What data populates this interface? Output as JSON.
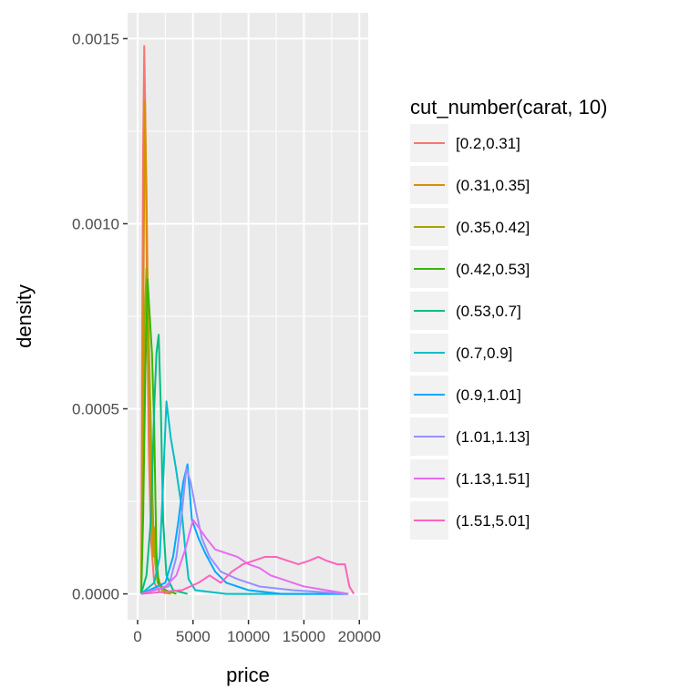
{
  "chart_data": {
    "type": "line",
    "title": "",
    "xlabel": "price",
    "ylabel": "density",
    "xlim": [
      -900,
      20800
    ],
    "ylim": [
      -7e-05,
      0.00157
    ],
    "x_ticks": [
      0,
      5000,
      10000,
      15000,
      20000
    ],
    "x_tick_labels": [
      "0",
      "5000",
      "10000",
      "15000",
      "20000"
    ],
    "y_ticks": [
      0,
      0.0005,
      0.001,
      0.0015
    ],
    "y_tick_labels": [
      "0.0000",
      "0.0005",
      "0.0010",
      "0.0015"
    ],
    "grid": true,
    "legend_position": "right",
    "legend_title": "cut_number(carat, 10)",
    "series": [
      {
        "name": "[0.2,0.31]",
        "color": "#F8766D",
        "points": [
          [
            326,
            0
          ],
          [
            400,
            0.0006
          ],
          [
            500,
            0.0012
          ],
          [
            600,
            0.00148
          ],
          [
            700,
            0.0013
          ],
          [
            850,
            0.0008
          ],
          [
            1000,
            0.0004
          ],
          [
            1200,
            0.00015
          ],
          [
            1500,
            3e-05
          ],
          [
            2000,
            5e-06
          ],
          [
            3000,
            0
          ]
        ]
      },
      {
        "name": "(0.31,0.35]",
        "color": "#D89000",
        "points": [
          [
            326,
            0
          ],
          [
            450,
            0.0004
          ],
          [
            550,
            0.0009
          ],
          [
            650,
            0.00133
          ],
          [
            800,
            0.0011
          ],
          [
            1000,
            0.0006
          ],
          [
            1200,
            0.00025
          ],
          [
            1400,
            0.0001
          ],
          [
            1600,
            0.00018
          ],
          [
            1800,
            5e-05
          ],
          [
            2200,
            1e-05
          ],
          [
            3000,
            0
          ]
        ]
      },
      {
        "name": "(0.35,0.42]",
        "color": "#A3A500",
        "points": [
          [
            326,
            0
          ],
          [
            500,
            0.0004
          ],
          [
            650,
            0.00075
          ],
          [
            800,
            0.00088
          ],
          [
            1000,
            0.0007
          ],
          [
            1200,
            0.00045
          ],
          [
            1400,
            0.0002
          ],
          [
            1600,
            8e-05
          ],
          [
            1800,
            3e-05
          ],
          [
            2500,
            0
          ]
        ]
      },
      {
        "name": "(0.42,0.53]",
        "color": "#39B600",
        "points": [
          [
            326,
            0
          ],
          [
            500,
            0.0002
          ],
          [
            700,
            0.0006
          ],
          [
            900,
            0.00085
          ],
          [
            1100,
            0.00075
          ],
          [
            1300,
            0.00065
          ],
          [
            1500,
            0.00045
          ],
          [
            1700,
            0.0001
          ],
          [
            1900,
            3e-05
          ],
          [
            2500,
            1e-05
          ],
          [
            3500,
            0
          ]
        ]
      },
      {
        "name": "(0.53,0.7]",
        "color": "#00BF7D",
        "points": [
          [
            326,
            0
          ],
          [
            800,
            5e-05
          ],
          [
            1200,
            0.0002
          ],
          [
            1500,
            0.0005
          ],
          [
            1700,
            0.00065
          ],
          [
            1900,
            0.0007
          ],
          [
            2100,
            0.0005
          ],
          [
            2300,
            0.0002
          ],
          [
            2600,
            5e-05
          ],
          [
            3200,
            1e-05
          ],
          [
            4500,
            0
          ]
        ]
      },
      {
        "name": "(0.7,0.9]",
        "color": "#00BFC4",
        "points": [
          [
            326,
            0
          ],
          [
            1500,
            3e-05
          ],
          [
            2000,
            0.0001
          ],
          [
            2300,
            0.0003
          ],
          [
            2600,
            0.00052
          ],
          [
            3000,
            0.00042
          ],
          [
            3400,
            0.00035
          ],
          [
            3900,
            0.00025
          ],
          [
            4300,
            0.00012
          ],
          [
            4600,
            4e-05
          ],
          [
            5200,
            1e-05
          ],
          [
            8000,
            0
          ],
          [
            19000,
            0
          ]
        ]
      },
      {
        "name": "(0.9,1.01]",
        "color": "#00A9FF",
        "points": [
          [
            326,
            0
          ],
          [
            2500,
            3e-05
          ],
          [
            3200,
            0.0001
          ],
          [
            3700,
            0.0002
          ],
          [
            4100,
            0.0003
          ],
          [
            4500,
            0.00035
          ],
          [
            4900,
            0.0002
          ],
          [
            5500,
            0.00015
          ],
          [
            6100,
            0.00011
          ],
          [
            7000,
            6e-05
          ],
          [
            8000,
            3e-05
          ],
          [
            10000,
            1e-05
          ],
          [
            13000,
            0
          ],
          [
            19000,
            0
          ]
        ]
      },
      {
        "name": "(1.01,1.13]",
        "color": "#9590FF",
        "points": [
          [
            326,
            0
          ],
          [
            2800,
            2e-05
          ],
          [
            3500,
            0.0001
          ],
          [
            4000,
            0.00022
          ],
          [
            4400,
            0.00034
          ],
          [
            4800,
            0.0003
          ],
          [
            5300,
            0.00022
          ],
          [
            5800,
            0.00015
          ],
          [
            6500,
            0.0001
          ],
          [
            7500,
            6e-05
          ],
          [
            9000,
            4e-05
          ],
          [
            11000,
            2e-05
          ],
          [
            14000,
            1e-05
          ],
          [
            19000,
            0
          ]
        ]
      },
      {
        "name": "(1.13,1.51]",
        "color": "#E76BF3",
        "points": [
          [
            326,
            0
          ],
          [
            2500,
            2e-05
          ],
          [
            3500,
            5e-05
          ],
          [
            4300,
            0.00012
          ],
          [
            5000,
            0.0002
          ],
          [
            5500,
            0.00018
          ],
          [
            6200,
            0.00015
          ],
          [
            7000,
            0.00012
          ],
          [
            8000,
            0.00011
          ],
          [
            9000,
            0.0001
          ],
          [
            10000,
            8e-05
          ],
          [
            11000,
            7e-05
          ],
          [
            12000,
            5e-05
          ],
          [
            13000,
            4e-05
          ],
          [
            14000,
            3e-05
          ],
          [
            15000,
            2e-05
          ],
          [
            17000,
            1e-05
          ],
          [
            19000,
            0
          ]
        ]
      },
      {
        "name": "(1.51,5.01]",
        "color": "#FF62BC",
        "points": [
          [
            326,
            0
          ],
          [
            4000,
            1e-05
          ],
          [
            5500,
            3e-05
          ],
          [
            6500,
            5e-05
          ],
          [
            7500,
            3e-05
          ],
          [
            8500,
            6e-05
          ],
          [
            9500,
            8e-05
          ],
          [
            10500,
            9e-05
          ],
          [
            11500,
            0.0001
          ],
          [
            12500,
            0.0001
          ],
          [
            13500,
            9e-05
          ],
          [
            14500,
            8e-05
          ],
          [
            15500,
            9e-05
          ],
          [
            16300,
            0.0001
          ],
          [
            17000,
            9e-05
          ],
          [
            18000,
            8e-05
          ],
          [
            18700,
            8e-05
          ],
          [
            19100,
            2e-05
          ],
          [
            19500,
            0
          ]
        ]
      }
    ]
  }
}
